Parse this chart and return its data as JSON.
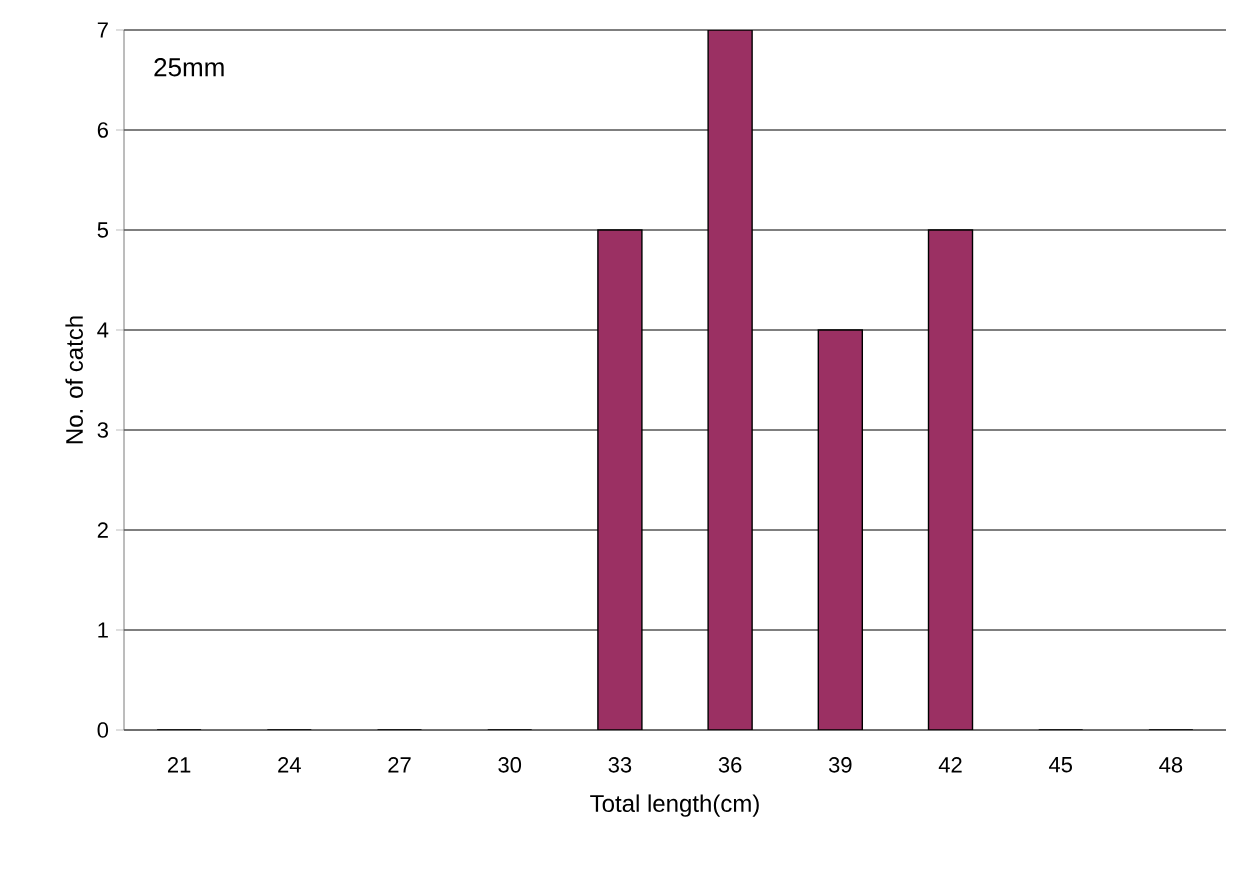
{
  "chart_data": {
    "type": "bar",
    "categories": [
      "21",
      "24",
      "27",
      "30",
      "33",
      "36",
      "39",
      "42",
      "45",
      "48"
    ],
    "values": [
      0,
      0,
      0,
      0,
      5,
      7,
      4,
      5,
      0,
      0
    ],
    "color": "#9b3063",
    "xlabel": "Total length(cm)",
    "ylabel": "No. of catch",
    "annotations": [
      "25mm"
    ],
    "ylim": [
      0,
      7
    ],
    "yticks": [
      0,
      1,
      2,
      3,
      4,
      5,
      6,
      7
    ],
    "grid": "y"
  }
}
